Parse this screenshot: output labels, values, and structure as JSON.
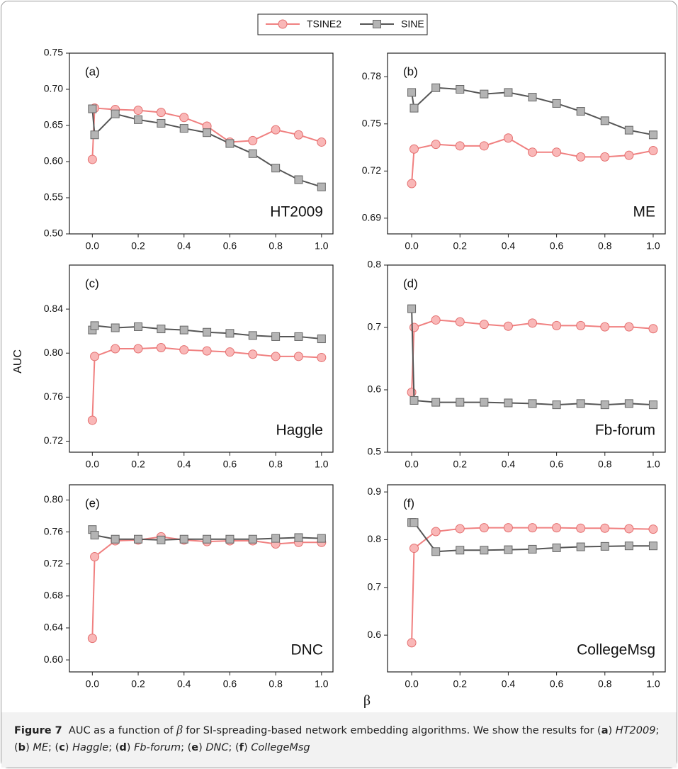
{
  "figure": {
    "y_label": "AUC",
    "x_label": "β",
    "caption": [
      {
        "text": "Figure 7",
        "style": "bold"
      },
      {
        "text": "  AUC as a function of ",
        "style": "normal"
      },
      {
        "text": "β",
        "style": "symbol"
      },
      {
        "text": " for SI-spreading-based network embedding algorithms. We show the results for (",
        "style": "normal"
      },
      {
        "text": "a",
        "style": "bold"
      },
      {
        "text": ") ",
        "style": "normal"
      },
      {
        "text": "HT2009",
        "style": "italic"
      },
      {
        "text": "; (",
        "style": "normal"
      },
      {
        "text": "b",
        "style": "bold"
      },
      {
        "text": ") ",
        "style": "normal"
      },
      {
        "text": "ME",
        "style": "italic"
      },
      {
        "text": "; (",
        "style": "normal"
      },
      {
        "text": "c",
        "style": "bold"
      },
      {
        "text": ") ",
        "style": "normal"
      },
      {
        "text": "Haggle",
        "style": "italic"
      },
      {
        "text": "; (",
        "style": "normal"
      },
      {
        "text": "d",
        "style": "bold"
      },
      {
        "text": ") ",
        "style": "normal"
      },
      {
        "text": "Fb-forum",
        "style": "italic"
      },
      {
        "text": "; (",
        "style": "normal"
      },
      {
        "text": "e",
        "style": "bold"
      },
      {
        "text": ") ",
        "style": "normal"
      },
      {
        "text": "DNC",
        "style": "italic"
      },
      {
        "text": "; (",
        "style": "normal"
      },
      {
        "text": "f",
        "style": "bold"
      },
      {
        "text": ") ",
        "style": "normal"
      },
      {
        "text": "CollegeMsg",
        "style": "italic"
      }
    ]
  },
  "chart_data": [
    {
      "type": "line",
      "annotations": [
        "(a)",
        "HT2009"
      ],
      "x": [
        0,
        0.01,
        0.1,
        0.2,
        0.3,
        0.4,
        0.5,
        0.6,
        0.7,
        0.8,
        0.9,
        1.0
      ],
      "xlim": [
        -0.1,
        1.05
      ],
      "xticks": [
        {
          "value": 0,
          "label": "0.0"
        },
        0.2,
        0.4,
        0.6,
        0.8,
        {
          "value": 1,
          "label": "1.0"
        }
      ],
      "ylim": [
        0.5,
        0.75
      ],
      "yticks": [
        {
          "value": 0.5,
          "label": "0.50"
        },
        0.55,
        {
          "value": 0.6,
          "label": "0.60"
        },
        0.65,
        {
          "value": 0.7,
          "label": "0.70"
        },
        0.75
      ],
      "series": [
        {
          "name": "TSINE2",
          "color": "#f08080",
          "marker": "circle",
          "values": [
            0.603,
            0.674,
            0.672,
            0.671,
            0.668,
            0.661,
            0.649,
            0.627,
            0.629,
            0.644,
            0.637,
            0.627
          ]
        },
        {
          "name": "SINE",
          "color": "#555555",
          "marker": "square",
          "values": [
            0.673,
            0.637,
            0.666,
            0.658,
            0.653,
            0.646,
            0.64,
            0.625,
            0.611,
            0.591,
            0.575,
            0.565
          ]
        }
      ]
    },
    {
      "type": "line",
      "annotations": [
        "(b)",
        "ME"
      ],
      "x": [
        0,
        0.01,
        0.1,
        0.2,
        0.3,
        0.4,
        0.5,
        0.6,
        0.7,
        0.8,
        0.9,
        1.0
      ],
      "xlim": [
        -0.1,
        1.05
      ],
      "xticks": [
        {
          "value": 0,
          "label": "0.0"
        },
        0.2,
        0.4,
        0.6,
        0.8,
        {
          "value": 1,
          "label": "1.0"
        }
      ],
      "ylim": [
        0.68,
        0.795
      ],
      "yticks": [
        0.69,
        0.72,
        0.75,
        0.78
      ],
      "series": [
        {
          "name": "TSINE2",
          "color": "#f08080",
          "marker": "circle",
          "values": [
            0.712,
            0.734,
            0.737,
            0.736,
            0.736,
            0.741,
            0.732,
            0.732,
            0.729,
            0.729,
            0.73,
            0.733
          ]
        },
        {
          "name": "SINE",
          "color": "#555555",
          "marker": "square",
          "values": [
            0.77,
            0.76,
            0.773,
            0.772,
            0.769,
            0.77,
            0.767,
            0.763,
            0.758,
            0.752,
            0.746,
            0.743
          ]
        }
      ]
    },
    {
      "type": "line",
      "annotations": [
        "(c)",
        "Haggle"
      ],
      "x": [
        0,
        0.01,
        0.1,
        0.2,
        0.3,
        0.4,
        0.5,
        0.6,
        0.7,
        0.8,
        0.9,
        1.0
      ],
      "xlim": [
        -0.1,
        1.05
      ],
      "xticks": [
        {
          "value": 0,
          "label": "0.0"
        },
        0.2,
        0.4,
        0.6,
        0.8,
        {
          "value": 1,
          "label": "1.0"
        }
      ],
      "ylim": [
        0.71,
        0.88
      ],
      "yticks": [
        0.72,
        0.76,
        {
          "value": 0.8,
          "label": "0.80"
        },
        0.84
      ],
      "series": [
        {
          "name": "TSINE2",
          "color": "#f08080",
          "marker": "circle",
          "values": [
            0.739,
            0.797,
            0.804,
            0.804,
            0.805,
            0.803,
            0.802,
            0.801,
            0.799,
            0.797,
            0.797,
            0.796
          ]
        },
        {
          "name": "SINE",
          "color": "#555555",
          "marker": "square",
          "values": [
            0.821,
            0.825,
            0.823,
            0.824,
            0.822,
            0.821,
            0.819,
            0.818,
            0.816,
            0.815,
            0.815,
            0.813
          ]
        }
      ]
    },
    {
      "type": "line",
      "annotations": [
        "(d)",
        "Fb-forum"
      ],
      "x": [
        0,
        0.01,
        0.1,
        0.2,
        0.3,
        0.4,
        0.5,
        0.6,
        0.7,
        0.8,
        0.9,
        1.0
      ],
      "xlim": [
        -0.1,
        1.05
      ],
      "xticks": [
        {
          "value": 0,
          "label": "0.0"
        },
        0.2,
        0.4,
        0.6,
        0.8,
        {
          "value": 1,
          "label": "1.0"
        }
      ],
      "ylim": [
        0.5,
        0.8
      ],
      "yticks": [
        0.5,
        0.6,
        0.7,
        0.8
      ],
      "series": [
        {
          "name": "TSINE2",
          "color": "#f08080",
          "marker": "circle",
          "values": [
            0.596,
            0.7,
            0.712,
            0.709,
            0.705,
            0.702,
            0.707,
            0.703,
            0.703,
            0.701,
            0.701,
            0.698
          ]
        },
        {
          "name": "SINE",
          "color": "#555555",
          "marker": "square",
          "values": [
            0.73,
            0.583,
            0.58,
            0.58,
            0.58,
            0.579,
            0.578,
            0.576,
            0.578,
            0.576,
            0.578,
            0.576
          ]
        }
      ]
    },
    {
      "type": "line",
      "annotations": [
        "(e)",
        "DNC"
      ],
      "x": [
        0,
        0.01,
        0.1,
        0.2,
        0.3,
        0.4,
        0.5,
        0.6,
        0.7,
        0.8,
        0.9,
        1.0
      ],
      "xlim": [
        -0.1,
        1.05
      ],
      "xticks": [
        {
          "value": 0,
          "label": "0.0"
        },
        0.2,
        0.4,
        0.6,
        0.8,
        {
          "value": 1,
          "label": "1.0"
        }
      ],
      "ylim": [
        0.585,
        0.819
      ],
      "yticks": [
        {
          "value": 0.6,
          "label": "0.60"
        },
        0.64,
        0.68,
        0.72,
        0.76,
        {
          "value": 0.8,
          "label": "0.80"
        }
      ],
      "series": [
        {
          "name": "TSINE2",
          "color": "#f08080",
          "marker": "circle",
          "values": [
            0.627,
            0.729,
            0.749,
            0.75,
            0.754,
            0.75,
            0.748,
            0.749,
            0.749,
            0.745,
            0.747,
            0.747
          ]
        },
        {
          "name": "SINE",
          "color": "#555555",
          "marker": "square",
          "values": [
            0.763,
            0.756,
            0.751,
            0.751,
            0.75,
            0.751,
            0.751,
            0.751,
            0.751,
            0.752,
            0.753,
            0.752
          ]
        }
      ]
    },
    {
      "type": "line",
      "annotations": [
        "(f)",
        "CollegeMsg"
      ],
      "x": [
        0,
        0.01,
        0.1,
        0.2,
        0.3,
        0.4,
        0.5,
        0.6,
        0.7,
        0.8,
        0.9,
        1.0
      ],
      "xlim": [
        -0.1,
        1.05
      ],
      "xticks": [
        {
          "value": 0,
          "label": "0.0"
        },
        0.2,
        0.4,
        0.6,
        0.8,
        {
          "value": 1,
          "label": "1.0"
        }
      ],
      "ylim": [
        0.523,
        0.915
      ],
      "yticks": [
        0.6,
        0.7,
        0.8,
        0.9
      ],
      "series": [
        {
          "name": "TSINE2",
          "color": "#f08080",
          "marker": "circle",
          "values": [
            0.584,
            0.782,
            0.817,
            0.823,
            0.825,
            0.825,
            0.825,
            0.825,
            0.824,
            0.824,
            0.823,
            0.822
          ]
        },
        {
          "name": "SINE",
          "color": "#555555",
          "marker": "square",
          "values": [
            0.836,
            0.836,
            0.775,
            0.778,
            0.778,
            0.779,
            0.78,
            0.783,
            0.785,
            0.786,
            0.787,
            0.787
          ]
        }
      ]
    }
  ]
}
